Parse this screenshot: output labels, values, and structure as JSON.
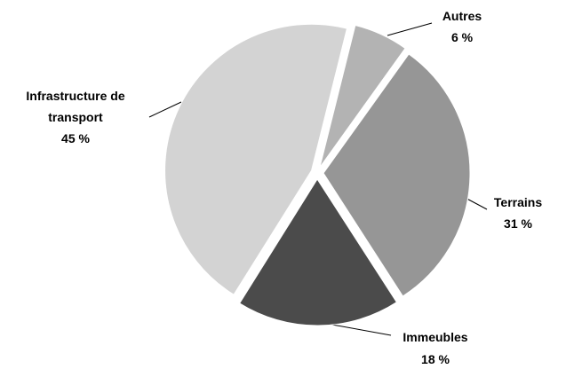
{
  "chart_data": {
    "type": "pie",
    "categories": [
      "Autres",
      "Terrains",
      "Immeubles",
      "Infrastructure de transport"
    ],
    "values": [
      6,
      31,
      18,
      45
    ],
    "value_labels": [
      "6 %",
      "31 %",
      "18 %",
      "45 %"
    ],
    "colors": [
      "#b3b3b3",
      "#969696",
      "#4b4b4b",
      "#d3d3d3"
    ]
  }
}
